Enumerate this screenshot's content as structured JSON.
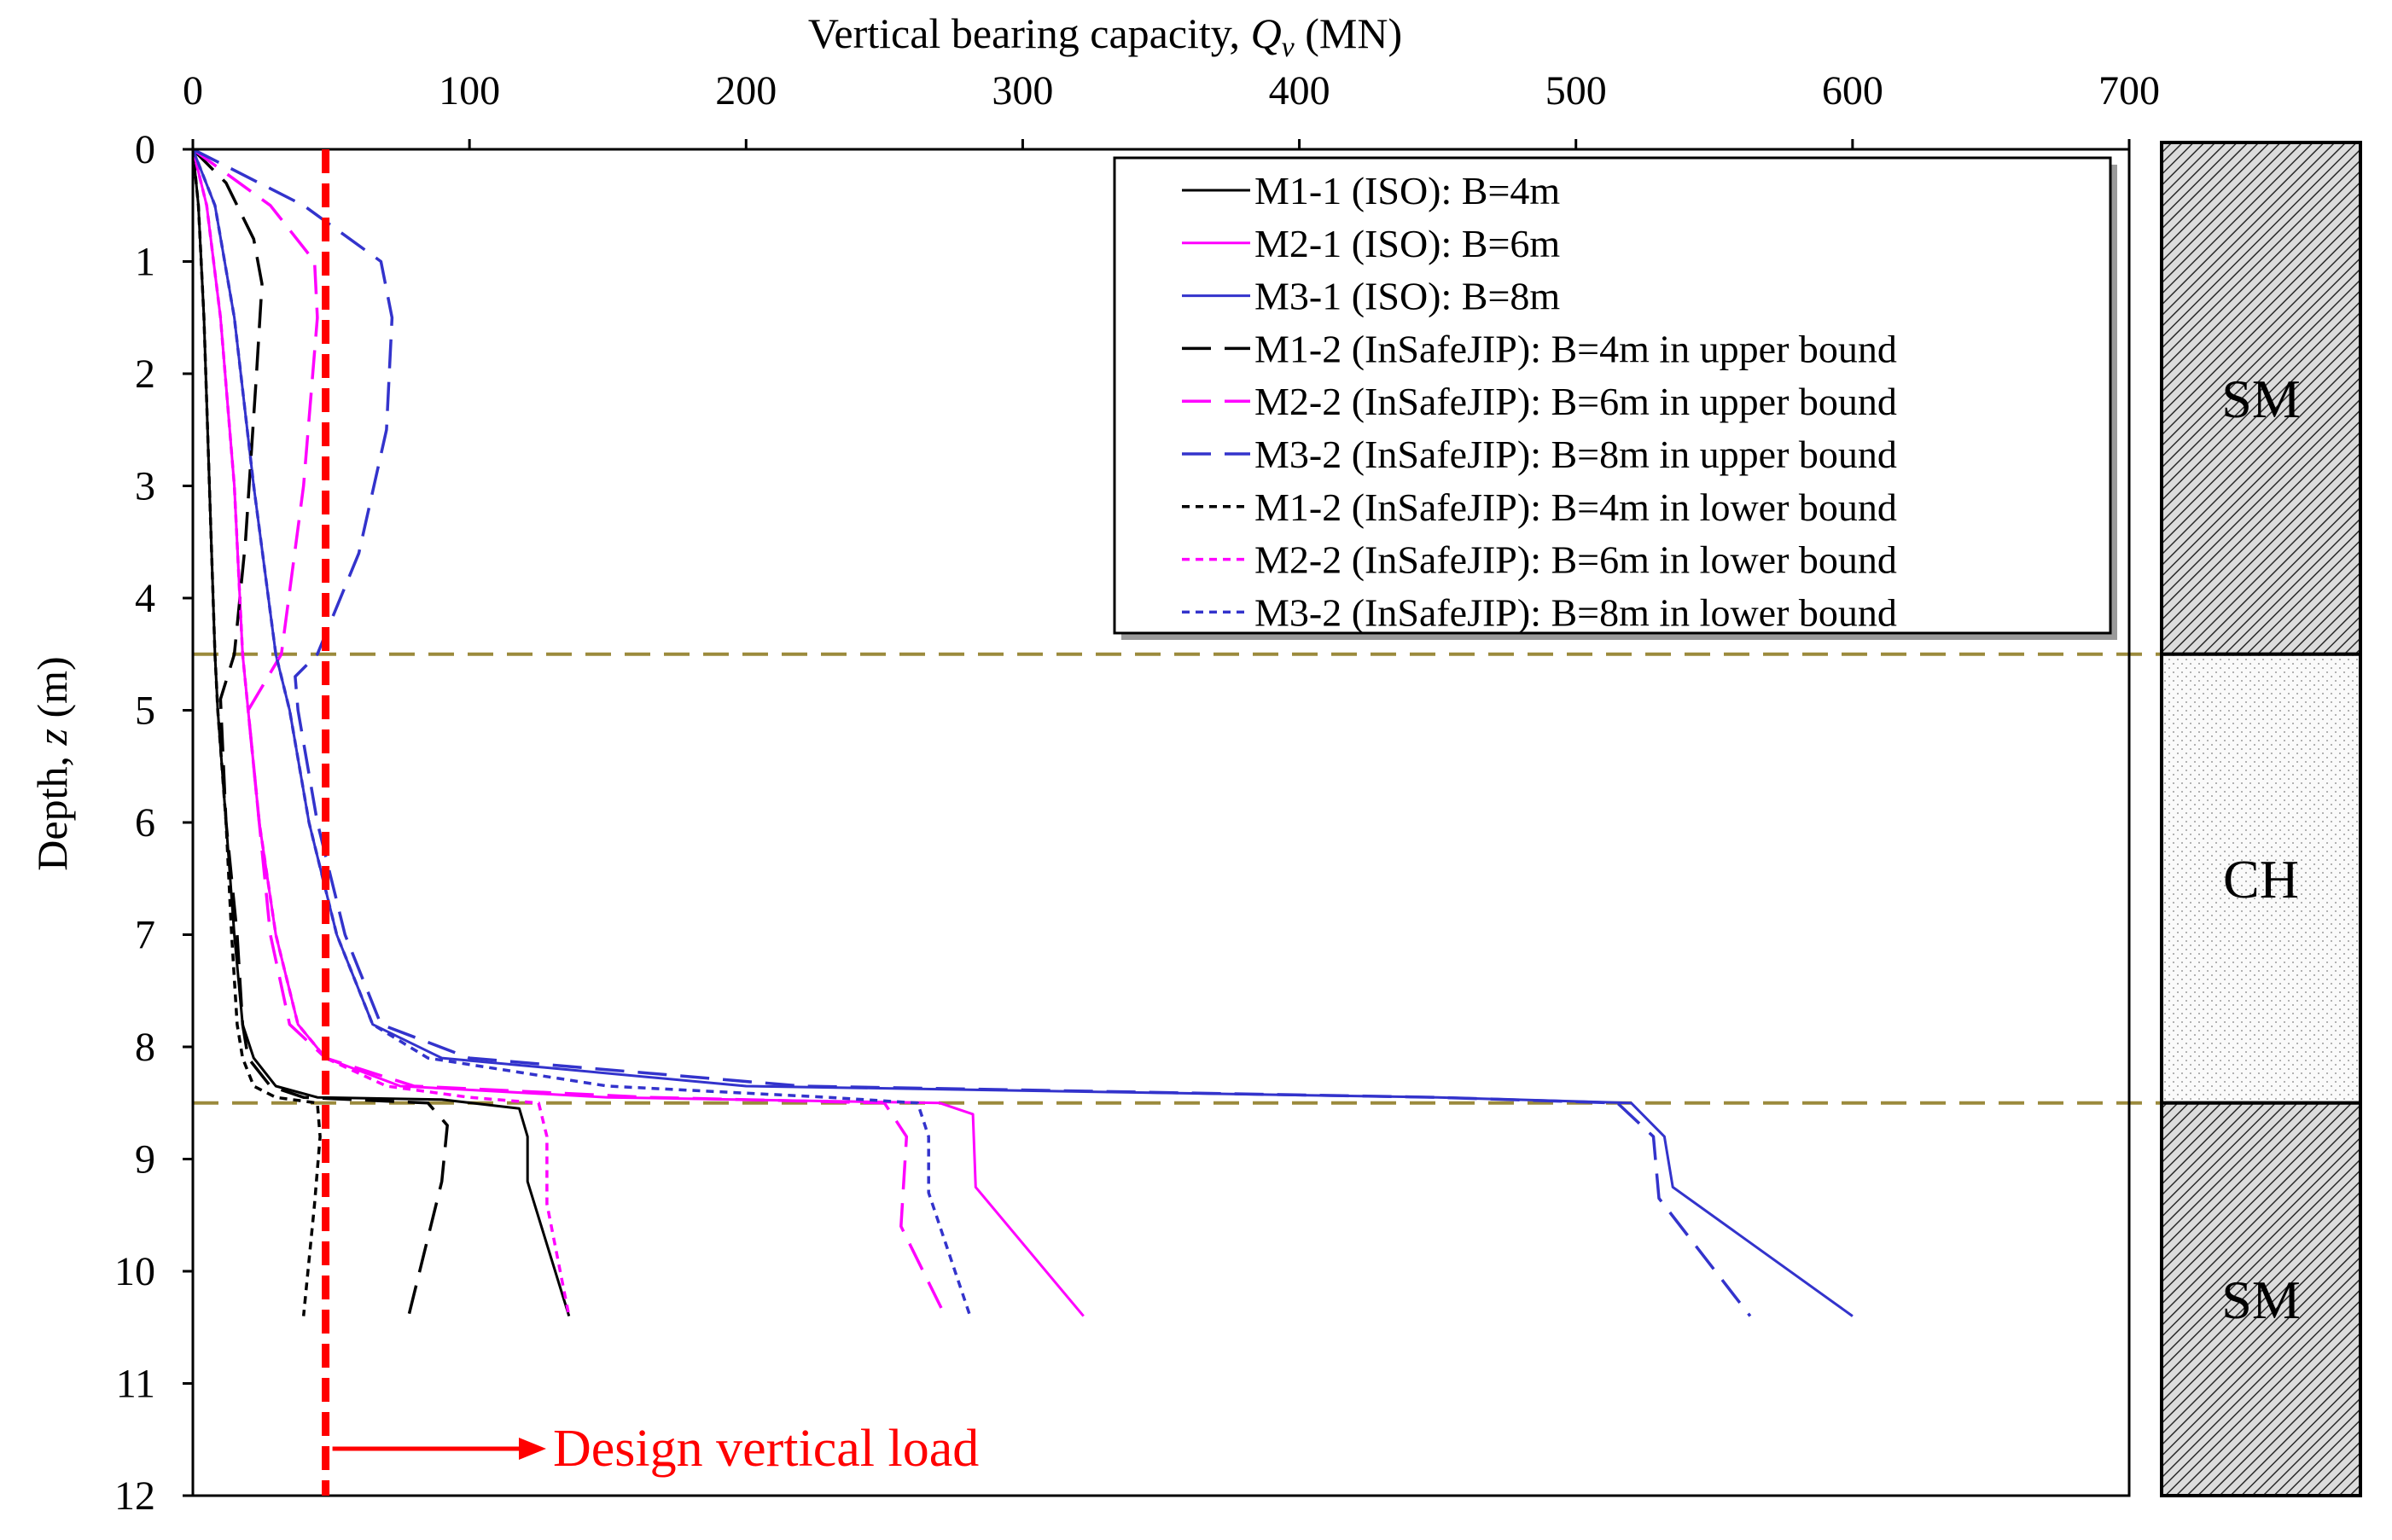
{
  "chart_data": {
    "type": "line",
    "xlabel_prefix": "Vertical bearing capacity, ",
    "xlabel_symbol": "Q",
    "xlabel_subscript": "v",
    "xlabel_unit": " (MN)",
    "ylabel_prefix": "Depth, ",
    "ylabel_symbol": "z",
    "ylabel_unit": " (m)",
    "xlim": [
      0,
      700
    ],
    "ylim": [
      0,
      12
    ],
    "xticks": [
      "0",
      "100",
      "200",
      "300",
      "400",
      "500",
      "600",
      "700"
    ],
    "yticks": [
      "0",
      "1",
      "2",
      "3",
      "4",
      "5",
      "6",
      "7",
      "8",
      "9",
      "10",
      "11",
      "12"
    ],
    "layer_boundaries": [
      4.5,
      8.5
    ],
    "soil_layers": [
      {
        "label": "SM",
        "top": 0,
        "bottom": 4.5,
        "pattern": "hatch"
      },
      {
        "label": "CH",
        "top": 4.5,
        "bottom": 8.5,
        "pattern": "dots"
      },
      {
        "label": "SM",
        "top": 8.5,
        "bottom": 12,
        "pattern": "hatch"
      }
    ],
    "design_load": {
      "value": 48,
      "label": "Design vertical load"
    },
    "colors": {
      "black": "#000000",
      "magenta": "#ff00ff",
      "blue": "#3333cc",
      "red": "#ff0000",
      "boundary": "#9b8a3c"
    },
    "series": [
      {
        "name": "M1-1 (ISO): B=4m",
        "color": "#000000",
        "dash": "solid",
        "points": [
          [
            0,
            0
          ],
          [
            2,
            0.5
          ],
          [
            4,
            1.5
          ],
          [
            6,
            3
          ],
          [
            8,
            4.5
          ],
          [
            9,
            5
          ],
          [
            12,
            6
          ],
          [
            15,
            7
          ],
          [
            18,
            7.8
          ],
          [
            22,
            8.1
          ],
          [
            30,
            8.35
          ],
          [
            45,
            8.45
          ],
          [
            90,
            8.47
          ],
          [
            118,
            8.55
          ],
          [
            121,
            8.8
          ],
          [
            121,
            9.2
          ],
          [
            136,
            10.4
          ]
        ]
      },
      {
        "name": "M2-1 (ISO): B=6m",
        "color": "#ff00ff",
        "dash": "solid",
        "points": [
          [
            0,
            0
          ],
          [
            5,
            0.5
          ],
          [
            10,
            1.5
          ],
          [
            15,
            3
          ],
          [
            18,
            4.5
          ],
          [
            20,
            5
          ],
          [
            24,
            6
          ],
          [
            30,
            7
          ],
          [
            38,
            7.8
          ],
          [
            48,
            8.1
          ],
          [
            75,
            8.35
          ],
          [
            150,
            8.45
          ],
          [
            270,
            8.5
          ],
          [
            282,
            8.6
          ],
          [
            283,
            9.25
          ],
          [
            322,
            10.4
          ]
        ]
      },
      {
        "name": "M3-1 (ISO): B=8m",
        "color": "#3333cc",
        "dash": "solid",
        "points": [
          [
            0,
            0
          ],
          [
            8,
            0.5
          ],
          [
            15,
            1.5
          ],
          [
            22,
            3
          ],
          [
            30,
            4.5
          ],
          [
            35,
            5
          ],
          [
            42,
            6
          ],
          [
            52,
            7
          ],
          [
            65,
            7.8
          ],
          [
            90,
            8.1
          ],
          [
            200,
            8.35
          ],
          [
            450,
            8.45
          ],
          [
            520,
            8.5
          ],
          [
            532,
            8.8
          ],
          [
            535,
            9.25
          ],
          [
            600,
            10.4
          ]
        ]
      },
      {
        "name": "M1-2 (InSafeJIP): B=4m in upper bound",
        "color": "#000000",
        "dash": "long",
        "points": [
          [
            0,
            0
          ],
          [
            12,
            0.3
          ],
          [
            22,
            0.8
          ],
          [
            25,
            1.2
          ],
          [
            23,
            2
          ],
          [
            19,
            3.5
          ],
          [
            15,
            4.5
          ],
          [
            10,
            4.9
          ],
          [
            12,
            6
          ],
          [
            16,
            7
          ],
          [
            18,
            7.8
          ],
          [
            20,
            8.1
          ],
          [
            28,
            8.35
          ],
          [
            40,
            8.45
          ],
          [
            85,
            8.5
          ],
          [
            92,
            8.7
          ],
          [
            90,
            9.2
          ],
          [
            78,
            10.4
          ]
        ]
      },
      {
        "name": "M2-2 (InSafeJIP): B=6m in upper bound",
        "color": "#ff00ff",
        "dash": "long",
        "points": [
          [
            0,
            0
          ],
          [
            28,
            0.5
          ],
          [
            44,
            1
          ],
          [
            45,
            1.5
          ],
          [
            40,
            3
          ],
          [
            32,
            4.5
          ],
          [
            20,
            5
          ],
          [
            24,
            6
          ],
          [
            28,
            7
          ],
          [
            35,
            7.8
          ],
          [
            48,
            8.1
          ],
          [
            80,
            8.35
          ],
          [
            165,
            8.45
          ],
          [
            250,
            8.5
          ],
          [
            258,
            8.8
          ],
          [
            256,
            9.6
          ],
          [
            272,
            10.4
          ]
        ]
      },
      {
        "name": "M3-2 (InSafeJIP): B=8m in upper bound",
        "color": "#3333cc",
        "dash": "long",
        "points": [
          [
            0,
            0
          ],
          [
            40,
            0.5
          ],
          [
            68,
            1
          ],
          [
            72,
            1.5
          ],
          [
            70,
            2.5
          ],
          [
            60,
            3.6
          ],
          [
            45,
            4.5
          ],
          [
            37,
            4.7
          ],
          [
            38,
            5
          ],
          [
            45,
            6
          ],
          [
            55,
            7
          ],
          [
            68,
            7.8
          ],
          [
            100,
            8.1
          ],
          [
            220,
            8.35
          ],
          [
            450,
            8.45
          ],
          [
            515,
            8.5
          ],
          [
            528,
            8.8
          ],
          [
            530,
            9.35
          ],
          [
            563,
            10.4
          ]
        ]
      },
      {
        "name": "M1-2 (InSafeJIP): B=4m in lower bound",
        "color": "#000000",
        "dash": "short",
        "points": [
          [
            0,
            0
          ],
          [
            2,
            0.5
          ],
          [
            4,
            1.5
          ],
          [
            6,
            3
          ],
          [
            8,
            4.5
          ],
          [
            9,
            5
          ],
          [
            12,
            6
          ],
          [
            14,
            7
          ],
          [
            16,
            7.8
          ],
          [
            18,
            8.1
          ],
          [
            22,
            8.35
          ],
          [
            30,
            8.45
          ],
          [
            45,
            8.5
          ],
          [
            46,
            8.8
          ],
          [
            44,
            9.4
          ],
          [
            40,
            10.4
          ]
        ]
      },
      {
        "name": "M2-2 (InSafeJIP): B=6m in lower bound",
        "color": "#ff00ff",
        "dash": "short",
        "points": [
          [
            0,
            0
          ],
          [
            5,
            0.5
          ],
          [
            10,
            1.5
          ],
          [
            15,
            3
          ],
          [
            18,
            4.5
          ],
          [
            20,
            5
          ],
          [
            24,
            6
          ],
          [
            30,
            7
          ],
          [
            38,
            7.8
          ],
          [
            48,
            8.1
          ],
          [
            70,
            8.35
          ],
          [
            100,
            8.45
          ],
          [
            125,
            8.5
          ],
          [
            128,
            8.8
          ],
          [
            128,
            9.4
          ],
          [
            136,
            10.4
          ]
        ]
      },
      {
        "name": "M3-2 (InSafeJIP): B=8m in lower bound",
        "color": "#3333cc",
        "dash": "short",
        "points": [
          [
            0,
            0
          ],
          [
            8,
            0.5
          ],
          [
            15,
            1.5
          ],
          [
            22,
            3
          ],
          [
            30,
            4.5
          ],
          [
            35,
            5
          ],
          [
            42,
            6
          ],
          [
            52,
            7
          ],
          [
            65,
            7.8
          ],
          [
            85,
            8.1
          ],
          [
            150,
            8.35
          ],
          [
            230,
            8.45
          ],
          [
            262,
            8.5
          ],
          [
            266,
            8.8
          ],
          [
            266,
            9.3
          ],
          [
            281,
            10.4
          ]
        ]
      }
    ]
  }
}
